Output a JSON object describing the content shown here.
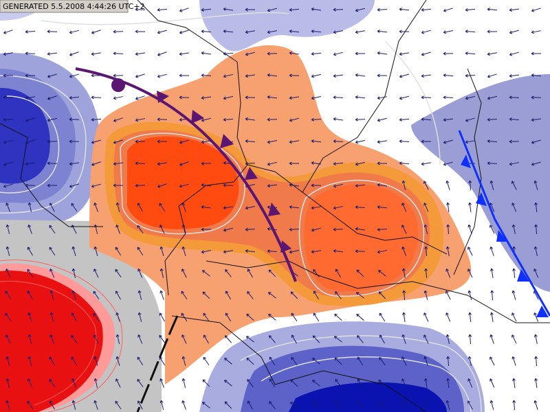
{
  "header": {
    "title": "GENERATED 5.5.2008 4:44:26 UTC+2"
  }
}
